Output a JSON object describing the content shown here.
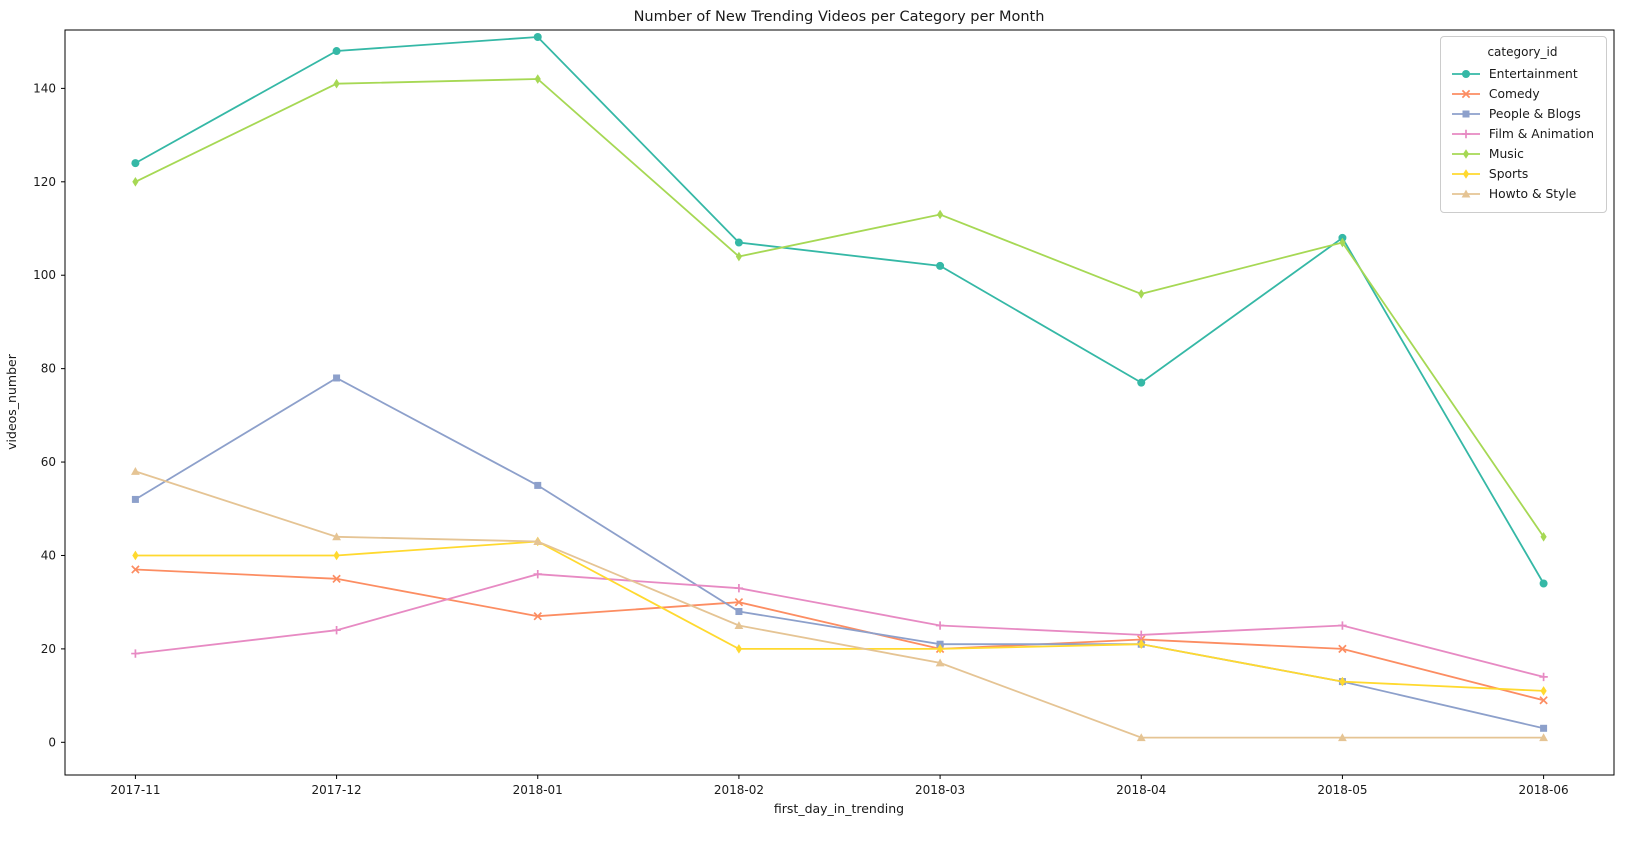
{
  "chart_data": {
    "type": "line",
    "title": "Number of New Trending Videos per Category per Month",
    "xlabel": "first_day_in_trending",
    "ylabel": "videos_number",
    "legend_title": "category_id",
    "legend_position": "upper right",
    "grid": false,
    "categories": [
      "2017-11",
      "2017-12",
      "2018-01",
      "2018-02",
      "2018-03",
      "2018-04",
      "2018-05",
      "2018-06"
    ],
    "yticks": [
      0,
      20,
      40,
      60,
      80,
      100,
      120,
      140
    ],
    "ylim": [
      -7,
      152.5
    ],
    "series": [
      {
        "name": "Entertainment",
        "color": "#35b8a6",
        "marker": "circle",
        "values": [
          124,
          148,
          151,
          107,
          102,
          77,
          108,
          34
        ]
      },
      {
        "name": "Comedy",
        "color": "#fc8d62",
        "marker": "x",
        "values": [
          37,
          35,
          27,
          30,
          20,
          22,
          20,
          9
        ]
      },
      {
        "name": "People & Blogs",
        "color": "#8da0cb",
        "marker": "square",
        "values": [
          52,
          78,
          55,
          28,
          21,
          21,
          13,
          3
        ]
      },
      {
        "name": "Film & Animation",
        "color": "#e78ac3",
        "marker": "plus",
        "values": [
          19,
          24,
          36,
          33,
          25,
          23,
          25,
          14
        ]
      },
      {
        "name": "Music",
        "color": "#a6d854",
        "marker": "diamond",
        "values": [
          120,
          141,
          142,
          104,
          113,
          96,
          107,
          44
        ]
      },
      {
        "name": "Sports",
        "color": "#ffd92f",
        "marker": "diamond",
        "values": [
          40,
          40,
          43,
          20,
          20,
          21,
          13,
          11
        ]
      },
      {
        "name": "Howto & Style",
        "color": "#e5c494",
        "marker": "triangle",
        "values": [
          58,
          44,
          43,
          25,
          17,
          1,
          1,
          1
        ]
      }
    ]
  }
}
